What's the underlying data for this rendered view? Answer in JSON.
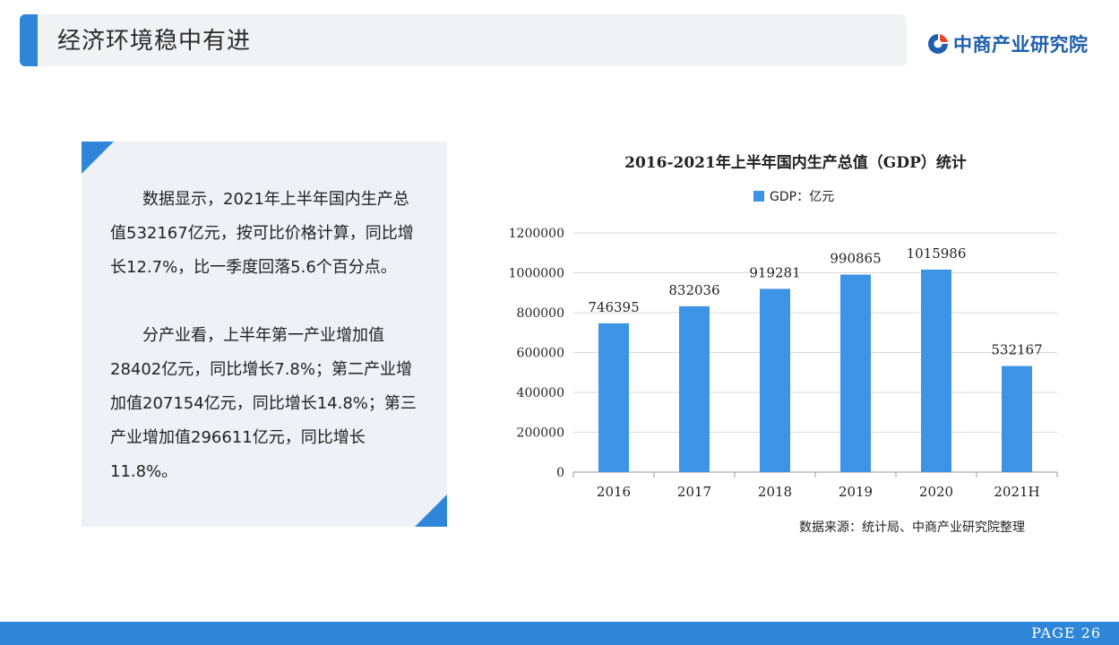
{
  "header": {
    "title": "经济环境稳中有进"
  },
  "logo": {
    "text": "中商产业研究院"
  },
  "text_panel": {
    "paragraphs": [
      "数据显示，2021年上半年国内生产总值532167亿元，按可比价格计算，同比增长12.7%，比一季度回落5.6个百分点。",
      "分产业看，上半年第一产业增加值28402亿元，同比增长7.8%；第二产业增加值207154亿元，同比增长14.8%；第三产业增加值296611亿元，同比增长11.8%。"
    ]
  },
  "chart_data": {
    "type": "bar",
    "title": "2016-2021年上半年国内生产总值（GDP）统计",
    "categories": [
      "2016",
      "2017",
      "2018",
      "2019",
      "2020",
      "2021H"
    ],
    "series": [
      {
        "name": "GDP：亿元",
        "values": [
          746395,
          832036,
          919281,
          990865,
          1015986,
          532167
        ]
      }
    ],
    "yticks": [
      "0",
      "200000",
      "400000",
      "600000",
      "800000",
      "1000000",
      "1200000"
    ],
    "ylim": [
      0,
      1200000
    ],
    "xlabel": "",
    "ylabel": "",
    "legend": "top-center",
    "bar_color": "#3d93e6",
    "grid": true
  },
  "source": "数据来源：统计局、中商产业研究院整理",
  "footer": {
    "page": "PAGE  26"
  },
  "colors": {
    "accent": "#2f86d8",
    "bar": "#3d93e6",
    "panel": "#eef1f6"
  }
}
